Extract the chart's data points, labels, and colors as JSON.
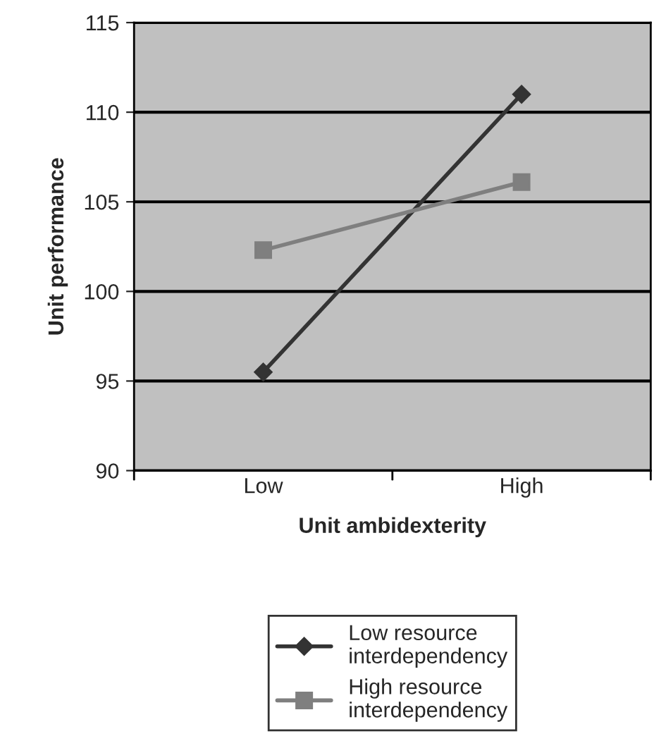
{
  "chart_data": {
    "type": "line",
    "xlabel": "Unit ambidexterity",
    "ylabel": "Unit performance",
    "categories": [
      "Low",
      "High"
    ],
    "series": [
      {
        "name": "Low resource interdependency",
        "color": "#333333",
        "marker": "diamond",
        "values": [
          95.5,
          111.0
        ]
      },
      {
        "name": "High resource interdependency",
        "color": "#7f7f7f",
        "marker": "square",
        "values": [
          102.3,
          106.1
        ]
      }
    ],
    "ylim": [
      90,
      115
    ],
    "yticks": [
      90,
      95,
      100,
      105,
      110,
      115
    ],
    "grid": "y",
    "legend": "bottom",
    "line_style": "solid"
  }
}
